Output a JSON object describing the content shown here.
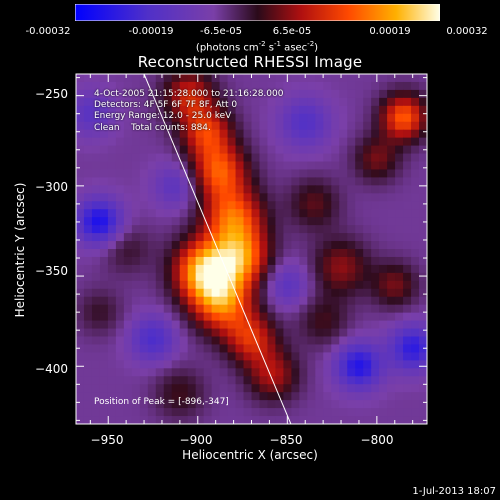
{
  "colorbar": {
    "ticks": [
      "-0.00032",
      "-0.00019",
      "-6.5e-05",
      "6.5e-05",
      "0.00019",
      "0.00032"
    ],
    "units_main": "(photons cm",
    "units_exp1": "-2",
    "units_mid": " s",
    "units_exp2": "-1",
    "units_mid2": " asec",
    "units_exp3": "-2",
    "units_end": ")"
  },
  "plot": {
    "title": "Reconstructed RHESSI Image",
    "info_time": "4-Oct-2005 21:15:28.000 to 21:16:28.000",
    "info_detectors": "Detectors: 4F 5F 6F 7F 8F, Att 0",
    "info_energy": "Energy Range: 12.0 - 25.0 keV",
    "info_clean": "Clean    Total counts: 884.",
    "peak_label": "Position of Peak = [-896,-347]",
    "timestamp": "1-Jul-2013 18:07"
  },
  "chart_data": {
    "type": "heatmap",
    "title": "Reconstructed RHESSI Image",
    "xlabel": "Heliocentric X (arcsec)",
    "ylabel": "Heliocentric Y (arcsec)",
    "xlim": [
      -968,
      -772
    ],
    "ylim": [
      -432,
      -238
    ],
    "x_ticks": [
      -950,
      -900,
      -850,
      -800
    ],
    "y_ticks": [
      -250,
      -300,
      -350,
      -400
    ],
    "x_tick_labels": [
      "−950",
      "−900",
      "−850",
      "−800"
    ],
    "y_tick_labels": [
      "−250",
      "−300",
      "−350",
      "−400"
    ],
    "colorscale": "hot-to-blue diverging",
    "color_range": [
      -0.00032,
      0.00032
    ],
    "peak": {
      "x": -896,
      "y": -347
    },
    "limb_line": {
      "x1": -930,
      "y1": -238,
      "x2": -848,
      "y2": -432
    },
    "sources": [
      {
        "x": -896,
        "y": -347,
        "intensity": 1.0,
        "sigma": 12
      },
      {
        "x": -886,
        "y": -365,
        "intensity": 0.75,
        "sigma": 12
      },
      {
        "x": -875,
        "y": -340,
        "intensity": 0.7,
        "sigma": 11
      },
      {
        "x": -880,
        "y": -318,
        "intensity": 0.75,
        "sigma": 12
      },
      {
        "x": -888,
        "y": -292,
        "intensity": 0.7,
        "sigma": 11
      },
      {
        "x": -895,
        "y": -270,
        "intensity": 0.6,
        "sigma": 10
      },
      {
        "x": -905,
        "y": -250,
        "intensity": 0.55,
        "sigma": 10
      },
      {
        "x": -870,
        "y": -385,
        "intensity": 0.55,
        "sigma": 10
      },
      {
        "x": -858,
        "y": -405,
        "intensity": 0.45,
        "sigma": 10
      },
      {
        "x": -785,
        "y": -262,
        "intensity": 0.75,
        "sigma": 9
      },
      {
        "x": -800,
        "y": -285,
        "intensity": 0.35,
        "sigma": 9
      },
      {
        "x": -820,
        "y": -345,
        "intensity": 0.4,
        "sigma": 11
      },
      {
        "x": -790,
        "y": -355,
        "intensity": 0.35,
        "sigma": 9
      },
      {
        "x": -830,
        "y": -375,
        "intensity": 0.25,
        "sigma": 10
      },
      {
        "x": -835,
        "y": -310,
        "intensity": 0.3,
        "sigma": 10
      },
      {
        "x": -940,
        "y": -335,
        "intensity": 0.2,
        "sigma": 10
      },
      {
        "x": -955,
        "y": -370,
        "intensity": 0.2,
        "sigma": 9
      },
      {
        "x": -910,
        "y": -415,
        "intensity": 0.25,
        "sigma": 10
      },
      {
        "x": -955,
        "y": -320,
        "intensity": -0.65,
        "sigma": 9
      },
      {
        "x": -912,
        "y": -300,
        "intensity": -0.3,
        "sigma": 9
      },
      {
        "x": -810,
        "y": -400,
        "intensity": -0.6,
        "sigma": 9
      },
      {
        "x": -780,
        "y": -390,
        "intensity": -0.55,
        "sigma": 9
      },
      {
        "x": -840,
        "y": -265,
        "intensity": -0.35,
        "sigma": 10
      },
      {
        "x": -925,
        "y": -385,
        "intensity": -0.4,
        "sigma": 9
      },
      {
        "x": -850,
        "y": -355,
        "intensity": -0.3,
        "sigma": 9
      },
      {
        "x": -960,
        "y": -260,
        "intensity": -0.3,
        "sigma": 9
      }
    ]
  }
}
